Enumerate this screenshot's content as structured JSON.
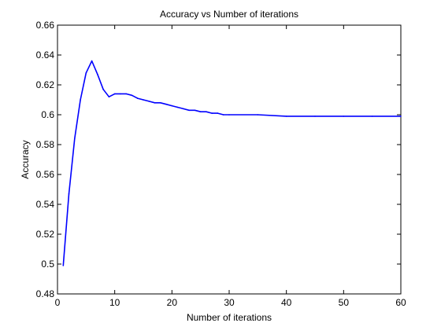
{
  "chart_data": {
    "type": "line",
    "title": "Accuracy vs Number of iterations",
    "xlabel": "Number of iterations",
    "ylabel": "Accuracy",
    "xlim": [
      0,
      60
    ],
    "ylim": [
      0.48,
      0.66
    ],
    "xticks": [
      0,
      10,
      20,
      30,
      40,
      50,
      60
    ],
    "yticks": [
      0.48,
      0.5,
      0.52,
      0.54,
      0.56,
      0.58,
      0.6,
      0.62,
      0.64,
      0.66
    ],
    "xtick_labels": [
      "0",
      "10",
      "20",
      "30",
      "40",
      "50",
      "60"
    ],
    "ytick_labels": [
      "0.48",
      "0.5",
      "0.52",
      "0.54",
      "0.56",
      "0.58",
      "0.6",
      "0.62",
      "0.64",
      "0.66"
    ],
    "grid": false,
    "colors": {
      "line": "#0000ff",
      "axes": "#000000",
      "background": "#ffffff"
    },
    "series": [
      {
        "x": [
          1,
          2,
          3,
          4,
          5,
          6,
          7,
          8,
          9,
          10,
          11,
          12,
          13,
          14,
          15,
          16,
          17,
          18,
          19,
          20,
          21,
          22,
          23,
          24,
          25,
          26,
          27,
          28,
          29,
          30,
          35,
          40,
          45,
          50,
          55,
          60
        ],
        "values": [
          0.499,
          0.547,
          0.584,
          0.61,
          0.628,
          0.636,
          0.627,
          0.617,
          0.612,
          0.614,
          0.614,
          0.614,
          0.613,
          0.611,
          0.61,
          0.609,
          0.608,
          0.608,
          0.607,
          0.606,
          0.605,
          0.604,
          0.603,
          0.603,
          0.602,
          0.602,
          0.601,
          0.601,
          0.6,
          0.6,
          0.6,
          0.599,
          0.599,
          0.599,
          0.599,
          0.599
        ]
      }
    ]
  }
}
